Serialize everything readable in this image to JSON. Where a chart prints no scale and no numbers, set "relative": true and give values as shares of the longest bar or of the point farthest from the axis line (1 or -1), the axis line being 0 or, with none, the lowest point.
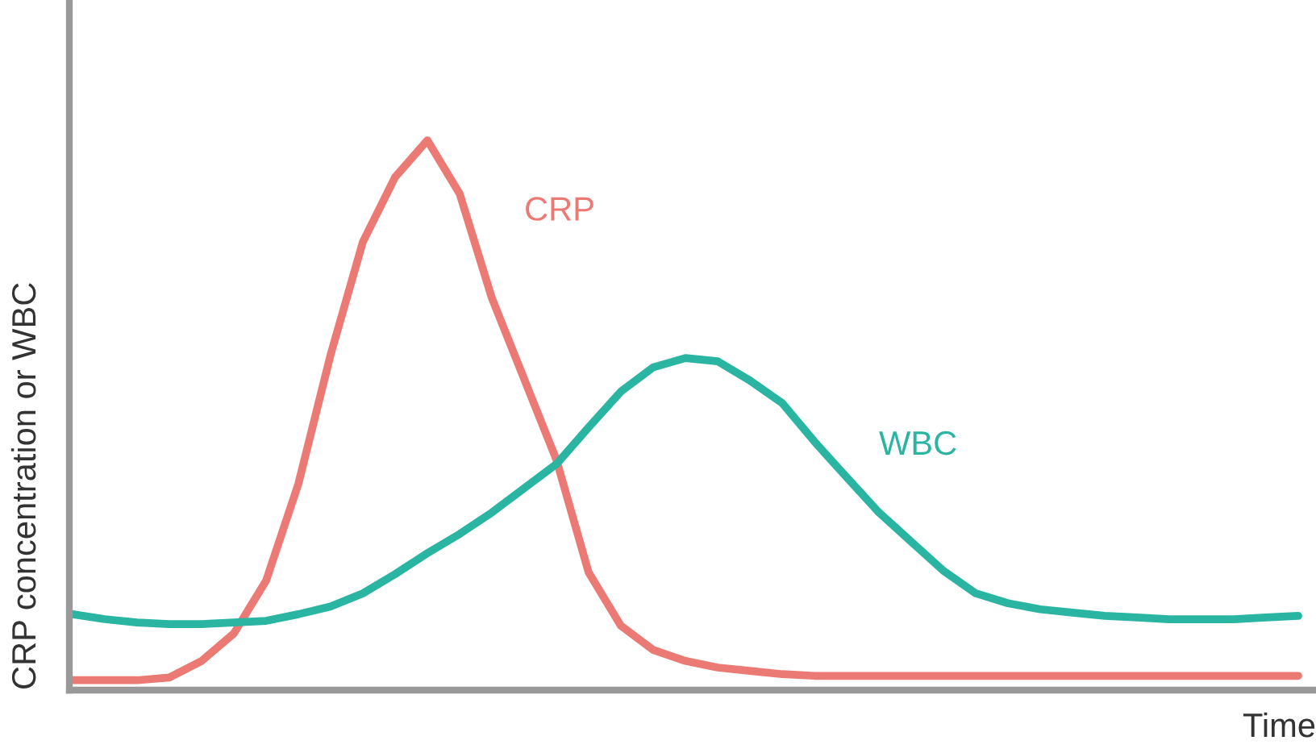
{
  "chart_data": {
    "type": "line",
    "relative": true,
    "xlabel": "Time",
    "ylabel": "CRP concentration or WBC",
    "categories": [
      null,
      null,
      null,
      null,
      null,
      null,
      null,
      null,
      null,
      null,
      null,
      null,
      null,
      null,
      null,
      null,
      null,
      null,
      null,
      null,
      null,
      null,
      null,
      null,
      null,
      null,
      null,
      null,
      null,
      null,
      null,
      null,
      null,
      null,
      null,
      null,
      null,
      null,
      null
    ],
    "series": [
      {
        "name": "CRP",
        "color": "#ec7a74",
        "values": [
          0.018,
          0.018,
          0.018,
          0.023,
          0.053,
          0.103,
          0.199,
          0.375,
          0.61,
          0.815,
          0.933,
          1,
          0.903,
          0.713,
          0.566,
          0.419,
          0.214,
          0.117,
          0.073,
          0.053,
          0.041,
          0.035,
          0.029,
          0.026,
          0.026,
          0.026,
          0.026,
          0.026,
          0.026,
          0.026,
          0.026,
          0.026,
          0.026,
          0.026,
          0.026,
          0.026,
          0.026,
          0.026,
          0.026
        ]
      },
      {
        "name": "WBC",
        "color": "#2ab5a3",
        "values": [
          0.138,
          0.129,
          0.123,
          0.12,
          0.12,
          0.123,
          0.126,
          0.138,
          0.152,
          0.176,
          0.211,
          0.249,
          0.284,
          0.323,
          0.367,
          0.411,
          0.478,
          0.543,
          0.587,
          0.604,
          0.598,
          0.563,
          0.522,
          0.452,
          0.387,
          0.323,
          0.27,
          0.217,
          0.176,
          0.158,
          0.147,
          0.141,
          0.135,
          0.132,
          0.129,
          0.129,
          0.129,
          0.132,
          0.135
        ]
      }
    ],
    "legend": false,
    "line_style": "solid",
    "marker": "none"
  }
}
